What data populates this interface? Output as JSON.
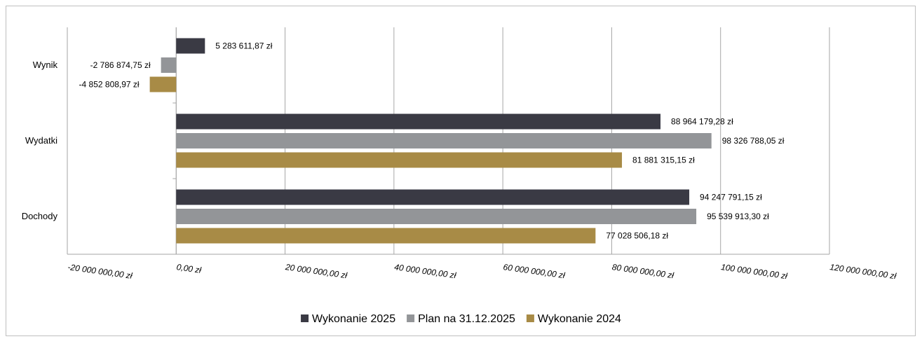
{
  "chart_data": {
    "type": "bar",
    "orientation": "horizontal",
    "categories": [
      "Dochody",
      "Wydatki",
      "Wynik"
    ],
    "series": [
      {
        "name": "Wykonanie 2025",
        "color": "#3a3a44",
        "values": [
          94247791.15,
          88964179.28,
          5283611.87
        ],
        "labels": [
          "94 247 791,15 zł",
          "88 964 179,28 zł",
          "5 283 611,87 zł"
        ]
      },
      {
        "name": "Plan na 31.12.2025",
        "color": "#939598",
        "values": [
          95539913.3,
          98326788.05,
          -2786874.75
        ],
        "labels": [
          "95 539 913,30 zł",
          "98 326 788,05 zł",
          "-2 786 874,75 zł"
        ]
      },
      {
        "name": "Wykonanie 2024",
        "color": "#a88b46",
        "values": [
          77028506.18,
          81881315.15,
          -4852808.97
        ],
        "labels": [
          "77 028 506,18 zł",
          "81 881 315,15 zł",
          "-4 852 808,97 zł"
        ]
      }
    ],
    "xlim": [
      -20000000,
      120000000
    ],
    "xticks": [
      -20000000,
      0,
      20000000,
      40000000,
      60000000,
      80000000,
      100000000,
      120000000
    ],
    "xtick_labels": [
      "-20 000 000,00 zł",
      "0,00 zł",
      "20 000 000,00 zł",
      "40 000 000,00 zł",
      "60 000 000,00 zł",
      "80 000 000,00 zł",
      "100 000 000,00 zł",
      "120 000 000,00 zł"
    ],
    "grid": true,
    "legend": "bottom",
    "title": "",
    "xlabel": "",
    "ylabel": ""
  }
}
